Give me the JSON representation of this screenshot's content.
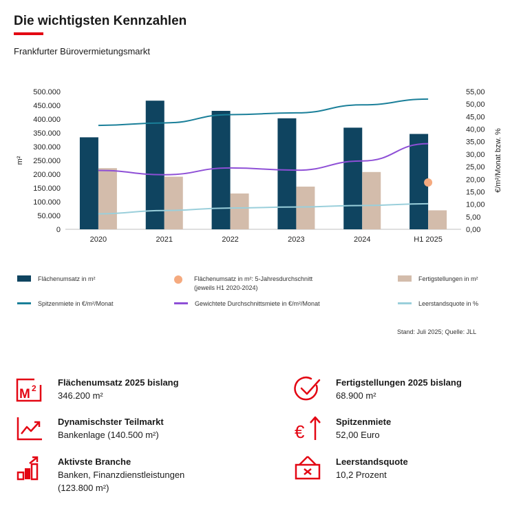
{
  "header": {
    "title": "Die wichtigsten Kennzahlen",
    "subtitle": "Frankfurter Bürovermietungsmarkt"
  },
  "colors": {
    "accent": "#e30613",
    "umsatz": "#0f4460",
    "fertig": "#d3bcab",
    "spitzenmiete": "#1a7f99",
    "durchschnitt": "#8e4fd6",
    "leerstand": "#9acfdb",
    "avg_dot": "#f5aa7f"
  },
  "chart_data": {
    "type": "bar",
    "categories": [
      "2020",
      "2021",
      "2022",
      "2023",
      "2024",
      "H1 2025"
    ],
    "ylabel": "m²",
    "y2label": "€/m²/Monat bzw. %",
    "ylim": [
      0,
      500000
    ],
    "y2lim": [
      0,
      55
    ],
    "yticks": [
      "0",
      "50.000",
      "100.000",
      "150.000",
      "200.000",
      "250.000",
      "300.000",
      "350.000",
      "400.000",
      "450.000",
      "500.000"
    ],
    "y2ticks": [
      "0,00",
      "5,00",
      "10,00",
      "15,00",
      "20,00",
      "25,00",
      "30,00",
      "35,00",
      "40,00",
      "45,00",
      "50,00",
      "55,00"
    ],
    "bar_series": [
      {
        "name": "Flächenumsatz in m²",
        "axis": "left",
        "values": [
          334000,
          467000,
          430000,
          403000,
          369000,
          346200
        ]
      },
      {
        "name": "Fertigstellungen in m²",
        "axis": "left",
        "values": [
          222000,
          191000,
          130000,
          155000,
          208000,
          68900
        ]
      }
    ],
    "line_series": [
      {
        "name": "Spitzenmiete in €/m²/Monat",
        "axis": "right",
        "values": [
          41.5,
          42.5,
          45.8,
          46.5,
          49.7,
          52.0
        ]
      },
      {
        "name": "Gewichtete Durchschnittsmiete in €/m²/Monat",
        "axis": "right",
        "values": [
          23.5,
          21.8,
          24.5,
          23.6,
          27.3,
          34.2
        ]
      },
      {
        "name": "Leerstandsquote in %",
        "axis": "right",
        "values": [
          6.2,
          7.5,
          8.5,
          8.9,
          9.5,
          10.2
        ]
      }
    ],
    "point_series": [
      {
        "name": "Flächenumsatz in m²: 5-Jahresdurchschnitt",
        "axis": "right",
        "category": "H1 2025",
        "value": 18.7
      }
    ],
    "grid": false,
    "legend_position": "bottom"
  },
  "legend": {
    "umsatz": "Flächenumsatz in m²",
    "avg": "Flächenumsatz in m²: 5-Jahresdurchschnitt",
    "avg_sub": "(jeweils H1 2020-2024)",
    "fertig": "Fertigstellungen in m²",
    "spitzen": "Spitzenmiete in €/m²/Monat",
    "durchschnitt": "Gewichtete Durchschnittsmiete in €/m²/Monat",
    "leerstand": "Leerstandsquote in %"
  },
  "source": "Stand: Juli 2025; Quelle: JLL",
  "kpis": [
    {
      "icon": "m2-icon",
      "title": "Flächenumsatz 2025 bislang",
      "value": "346.200 m²",
      "value2": ""
    },
    {
      "icon": "checkmark-circle-icon",
      "title": "Fertigstellungen 2025 bislang",
      "value": "68.900 m²",
      "value2": ""
    },
    {
      "icon": "trend-chart-icon",
      "title": "Dynamischster Teilmarkt",
      "value": "Bankenlage (140.500 m²)",
      "value2": ""
    },
    {
      "icon": "euro-arrow-up-icon",
      "title": "Spitzenmiete",
      "value": "52,00 Euro",
      "value2": ""
    },
    {
      "icon": "bar-steps-icon",
      "title": "Aktivste Branche",
      "value": "Banken, Finanzdienstleistungen",
      "value2": "(123.800 m²)"
    },
    {
      "icon": "vacancy-sign-icon",
      "title": "Leerstandsquote",
      "value": "10,2 Prozent",
      "value2": ""
    }
  ]
}
